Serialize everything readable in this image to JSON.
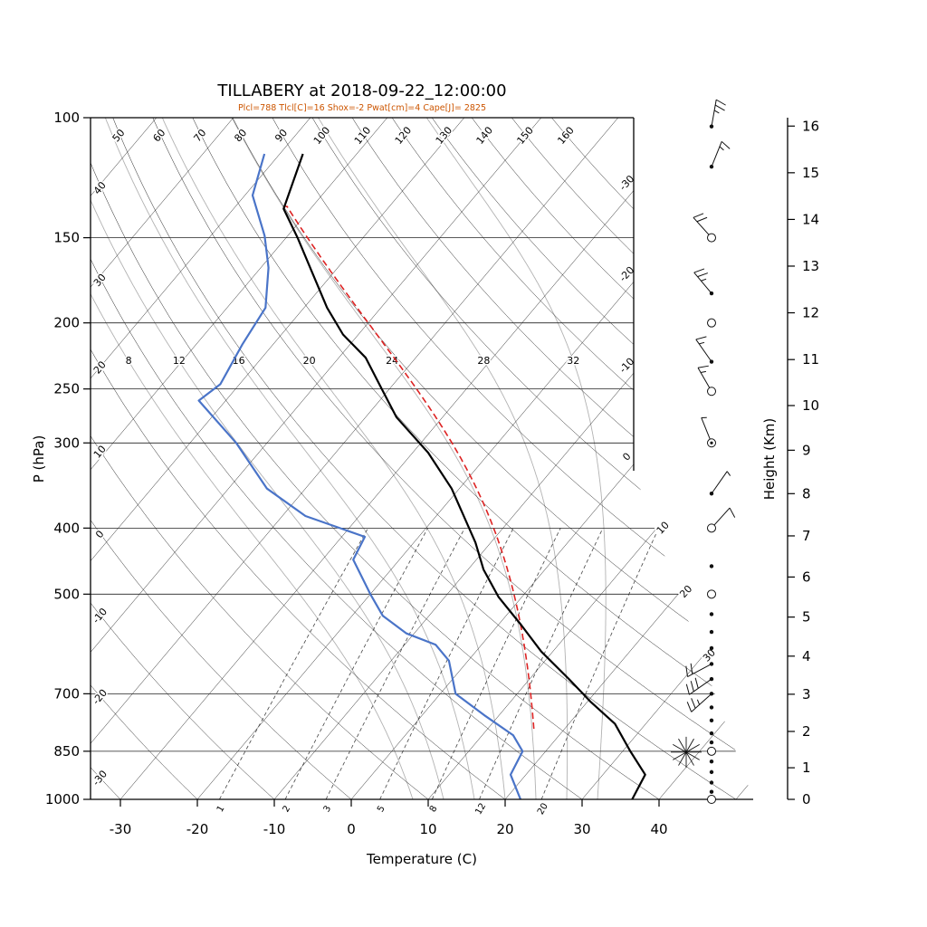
{
  "title": "TILLABERY at 2018-09-22_12:00:00",
  "params_line": {
    "text": "Plcl=788 Tlcl[C]=16 Shox=-2 Pwat[cm]=4 Cape[J]= 2825",
    "color": "#cc5500"
  },
  "axes": {
    "pressure": {
      "label": "P (hPa)",
      "ticks": [
        100,
        150,
        200,
        250,
        300,
        400,
        500,
        700,
        850,
        1000
      ]
    },
    "temperature": {
      "label": "Temperature (C)",
      "ticks": [
        -30,
        -20,
        -10,
        0,
        10,
        20,
        30,
        40
      ]
    },
    "height": {
      "label": "Height (Km)",
      "ticks": [
        0,
        1,
        2,
        3,
        4,
        5,
        6,
        7,
        8,
        9,
        10,
        11,
        12,
        13,
        14,
        15,
        16
      ]
    }
  },
  "grid": {
    "isobars": [
      100,
      150,
      200,
      250,
      300,
      400,
      500,
      700,
      850,
      1000
    ],
    "isotherms": {
      "min": -110,
      "max": 50,
      "step": 10,
      "edge_labels": [
        -30,
        -20,
        -10,
        0,
        10,
        20,
        30
      ]
    },
    "dry_adiabats": {
      "min": -30,
      "max": 160,
      "step": 10,
      "top_labels": [
        50,
        60,
        70,
        80,
        90,
        100,
        110,
        120,
        130,
        140,
        150,
        160
      ],
      "left_labels": [
        40,
        30,
        20,
        10,
        0,
        -10,
        -20,
        -30
      ]
    },
    "moist_adiabats": {
      "values": [
        8,
        12,
        16,
        20,
        24,
        28,
        32
      ],
      "label_pressure": 228
    },
    "mixing_ratio": {
      "values_g_kg": [
        1,
        2,
        3,
        5,
        8,
        12,
        20
      ],
      "top_pressure": 400
    }
  },
  "chart_data": {
    "type": "line",
    "variant": "skew-t_log-p_sounding",
    "station": "TILLABERY",
    "datetime": "2018-09-22_12:00:00",
    "x_axis": {
      "label": "Temperature (C)",
      "range": [
        -30,
        40
      ]
    },
    "y_axis": {
      "label": "P (hPa)",
      "scale": "log",
      "range": [
        1000,
        100
      ]
    },
    "y2_axis": {
      "label": "Height (Km)",
      "range": [
        0,
        16
      ]
    },
    "indices": {
      "Plcl": 788,
      "Tlcl_C": 16,
      "Shox": -2,
      "Pwat_cm": 4,
      "Cape_J": 2825
    },
    "series": [
      {
        "name": "temperature",
        "color": "#000000",
        "style": "solid",
        "width": 2.2,
        "points_p_hpa_t_c": [
          [
            1000,
            36.5
          ],
          [
            920,
            35.5
          ],
          [
            850,
            31
          ],
          [
            775,
            26
          ],
          [
            720,
            20.5
          ],
          [
            665,
            15
          ],
          [
            607,
            8.5
          ],
          [
            555,
            3
          ],
          [
            505,
            -3
          ],
          [
            460,
            -8
          ],
          [
            420,
            -12
          ],
          [
            350,
            -21
          ],
          [
            310,
            -28
          ],
          [
            275,
            -36
          ],
          [
            250,
            -41
          ],
          [
            225,
            -46.5
          ],
          [
            208,
            -52
          ],
          [
            190,
            -57
          ],
          [
            168,
            -63
          ],
          [
            150,
            -68.5
          ],
          [
            136,
            -73.5
          ],
          [
            113,
            -77
          ]
        ]
      },
      {
        "name": "dewpoint",
        "color": "#4a74c8",
        "style": "solid",
        "width": 2.2,
        "points_p_hpa_t_c": [
          [
            1000,
            22
          ],
          [
            920,
            18
          ],
          [
            850,
            17
          ],
          [
            805,
            14
          ],
          [
            752,
            8
          ],
          [
            700,
            2
          ],
          [
            626,
            -2.5
          ],
          [
            593,
            -6
          ],
          [
            571,
            -11
          ],
          [
            538,
            -16
          ],
          [
            500,
            -20
          ],
          [
            445,
            -26
          ],
          [
            412,
            -27
          ],
          [
            384,
            -37
          ],
          [
            350,
            -45
          ],
          [
            300,
            -54
          ],
          [
            260,
            -63.5
          ],
          [
            246,
            -62.5
          ],
          [
            215,
            -64
          ],
          [
            190,
            -65
          ],
          [
            166,
            -69
          ],
          [
            149,
            -73
          ],
          [
            130,
            -79
          ],
          [
            113,
            -82
          ]
        ]
      },
      {
        "name": "parcel_ascent",
        "color": "#dd2222",
        "style": "dashed",
        "width": 1.6,
        "curve": "pseudoadiabat",
        "start": {
          "p_hpa": 788,
          "t_c": 16
        },
        "end_p_hpa": 135
      }
    ]
  },
  "wind_column": {
    "x": 786,
    "staff_len": 30,
    "levels": [
      {
        "p": 103,
        "marker": "dot",
        "staff": {
          "angle": 10,
          "full": 2,
          "half": true
        }
      },
      {
        "p": 118,
        "marker": "dot",
        "staff": {
          "angle": 22,
          "full": 1,
          "half": true
        }
      },
      {
        "p": 150,
        "marker": "circle",
        "staff": {
          "angle": -42,
          "full": 2,
          "half": false
        }
      },
      {
        "p": 181,
        "marker": "dot",
        "staff": {
          "angle": -40,
          "full": 2,
          "half": true
        }
      },
      {
        "p": 200,
        "marker": "circle"
      },
      {
        "p": 228,
        "marker": "dot",
        "staff": {
          "angle": -35,
          "full": 1,
          "half": true
        }
      },
      {
        "p": 252,
        "marker": "circle",
        "staff": {
          "angle": -30,
          "full": 1,
          "half": true
        }
      },
      {
        "p": 300,
        "marker": "circle-dot",
        "staff": {
          "angle": -22,
          "full": 0,
          "half": true
        }
      },
      {
        "p": 356,
        "marker": "dot",
        "staff": {
          "angle": 35,
          "full": 0,
          "half": true
        }
      },
      {
        "p": 400,
        "marker": "circle",
        "staff": {
          "angle": 42,
          "full": 1,
          "half": false
        }
      },
      {
        "p": 455,
        "marker": "dot"
      },
      {
        "p": 500,
        "marker": "circle"
      },
      {
        "p": 535,
        "marker": "dot"
      },
      {
        "p": 568,
        "marker": "dot"
      },
      {
        "p": 600,
        "marker": "dot"
      },
      {
        "p": 633,
        "marker": "dot",
        "staff": {
          "angle": -118,
          "full": 2,
          "half": false
        }
      },
      {
        "p": 666,
        "marker": "dot",
        "staff": {
          "angle": -125,
          "full": 3,
          "half": false
        }
      },
      {
        "p": 700,
        "marker": "dot",
        "staff": {
          "angle": -132,
          "full": 2,
          "half": true
        }
      },
      {
        "p": 733,
        "marker": "dot"
      },
      {
        "p": 766,
        "marker": "dot"
      },
      {
        "p": 800,
        "marker": "dot"
      },
      {
        "p": 825,
        "marker": "dot"
      },
      {
        "p": 850,
        "marker": "circle",
        "special": "fan"
      },
      {
        "p": 880,
        "marker": "dot"
      },
      {
        "p": 912,
        "marker": "dot"
      },
      {
        "p": 945,
        "marker": "dot"
      },
      {
        "p": 975,
        "marker": "dot"
      },
      {
        "p": 1000,
        "marker": "circle"
      }
    ]
  }
}
